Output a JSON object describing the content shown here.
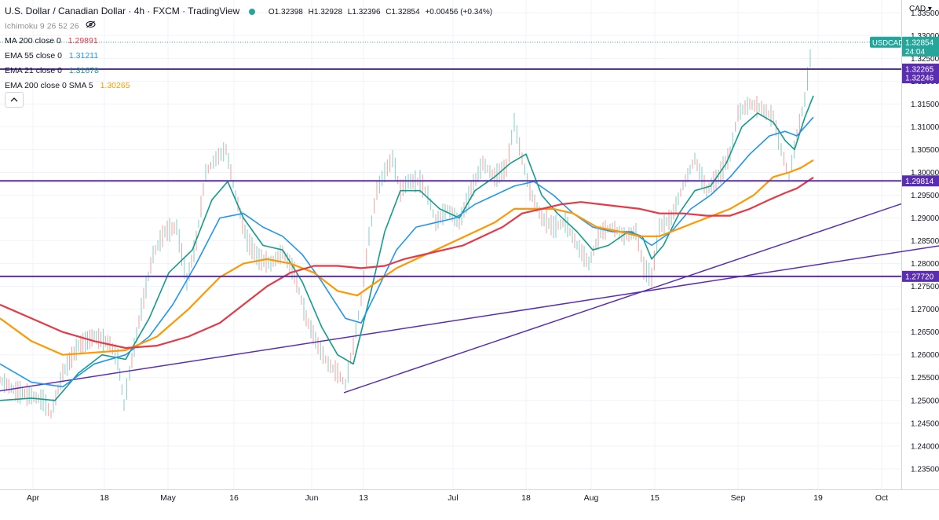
{
  "legend": {
    "title": "U.S. Dollar / Canadian Dollar · 4h · FXCM · TradingView",
    "open": "O1.32398",
    "high": "H1.32928",
    "low": "L1.32396",
    "close": "C1.32854",
    "change": "+0.00456 (+0.34%)",
    "ichimoku": "Ichimoku 9 26 52 26",
    "ma200": {
      "label": "MA 200 close 0",
      "value": "1.29891",
      "color": "#e53946"
    },
    "ema55": {
      "label": "EMA 55 close 0",
      "value": "1.31211",
      "color": "#2196f3"
    },
    "ema21": {
      "label": "EMA 21 close 0",
      "value": "1.31678",
      "color": "#129c8c"
    },
    "ema200": {
      "label": "EMA 200 close 0 SMA 5",
      "value": "1.30265",
      "color": "#ff9800"
    }
  },
  "price_axis": {
    "currency": "CAD",
    "symbol_tag": "USDCAD",
    "countdown": "24:04"
  },
  "chart_data": {
    "type": "line",
    "symbol": "USDCAD",
    "timeframe": "4h",
    "ylim": [
      1.2305,
      1.3378
    ],
    "x_tick_labels": [
      "Apr",
      "18",
      "May",
      "16",
      "Jun",
      "13",
      "Jul",
      "18",
      "Aug",
      "15",
      "Sep",
      "19",
      "Oct"
    ],
    "y_tick_labels": [
      "1.23500",
      "1.24000",
      "1.24500",
      "1.25000",
      "1.25500",
      "1.26000",
      "1.26500",
      "1.27000",
      "1.27500",
      "1.28000",
      "1.28500",
      "1.29000",
      "1.29500",
      "1.30000",
      "1.30500",
      "1.31000",
      "1.31500",
      "1.32000",
      "1.32500",
      "1.33000",
      "1.33500"
    ],
    "last_price": "1.32854",
    "horizontal_levels": [
      {
        "value": "1.32265",
        "color": "#5b2db3"
      },
      {
        "value": "1.29814",
        "color": "#5b2db3"
      },
      {
        "value": "1.27720",
        "color": "#5b2db3"
      }
    ],
    "extra_label": {
      "value": "1.32246",
      "color": "#5b2db3"
    },
    "trendlines": [
      {
        "from": [
          0.0,
          1.2521
        ],
        "to": [
          1196.0,
          1.2839
        ],
        "color": "#5b2db3"
      },
      {
        "from": [
          438.0,
          1.2517
        ],
        "to": [
          1148.0,
          1.2931
        ],
        "color": "#5b2db3"
      }
    ],
    "price_path": [
      [
        0,
        1.2545
      ],
      [
        20,
        1.252
      ],
      [
        40,
        1.251
      ],
      [
        55,
        1.25
      ],
      [
        65,
        1.247
      ],
      [
        80,
        1.256
      ],
      [
        100,
        1.262
      ],
      [
        120,
        1.264
      ],
      [
        140,
        1.2625
      ],
      [
        150,
        1.259
      ],
      [
        158,
        1.249
      ],
      [
        165,
        1.256
      ],
      [
        180,
        1.27
      ],
      [
        195,
        1.282
      ],
      [
        210,
        1.287
      ],
      [
        225,
        1.288
      ],
      [
        238,
        1.276
      ],
      [
        250,
        1.285
      ],
      [
        262,
        1.3
      ],
      [
        275,
        1.303
      ],
      [
        288,
        1.305
      ],
      [
        300,
        1.295
      ],
      [
        315,
        1.285
      ],
      [
        330,
        1.281
      ],
      [
        345,
        1.28
      ],
      [
        360,
        1.2825
      ],
      [
        375,
        1.278
      ],
      [
        390,
        1.268
      ],
      [
        405,
        1.262
      ],
      [
        418,
        1.258
      ],
      [
        430,
        1.256
      ],
      [
        440,
        1.2535
      ],
      [
        450,
        1.262
      ],
      [
        460,
        1.272
      ],
      [
        470,
        1.286
      ],
      [
        480,
        1.296
      ],
      [
        490,
        1.3
      ],
      [
        500,
        1.303
      ],
      [
        510,
        1.296
      ],
      [
        520,
        1.298
      ],
      [
        535,
        1.298
      ],
      [
        545,
        1.295
      ],
      [
        555,
        1.289
      ],
      [
        570,
        1.292
      ],
      [
        585,
        1.289
      ],
      [
        600,
        1.296
      ],
      [
        615,
        1.302
      ],
      [
        630,
        1.299
      ],
      [
        645,
        1.301
      ],
      [
        655,
        1.311
      ],
      [
        665,
        1.303
      ],
      [
        675,
        1.296
      ],
      [
        690,
        1.29
      ],
      [
        705,
        1.288
      ],
      [
        720,
        1.289
      ],
      [
        735,
        1.284
      ],
      [
        750,
        1.28
      ],
      [
        765,
        1.287
      ],
      [
        780,
        1.288
      ],
      [
        795,
        1.286
      ],
      [
        810,
        1.287
      ],
      [
        820,
        1.279
      ],
      [
        830,
        1.277
      ],
      [
        840,
        1.288
      ],
      [
        855,
        1.29
      ],
      [
        870,
        1.297
      ],
      [
        885,
        1.303
      ],
      [
        900,
        1.296
      ],
      [
        915,
        1.299
      ],
      [
        930,
        1.304
      ],
      [
        940,
        1.313
      ],
      [
        955,
        1.315
      ],
      [
        970,
        1.314
      ],
      [
        985,
        1.312
      ],
      [
        995,
        1.305
      ],
      [
        1005,
        1.299
      ],
      [
        1015,
        1.308
      ],
      [
        1025,
        1.316
      ],
      [
        1032,
        1.325
      ],
      [
        1036,
        1.3285
      ]
    ],
    "series": [
      {
        "name": "EMA 21 close 0",
        "color": "#129c8c",
        "points": [
          [
            0,
            1.25
          ],
          [
            40,
            1.2505
          ],
          [
            70,
            1.25
          ],
          [
            100,
            1.256
          ],
          [
            130,
            1.26
          ],
          [
            160,
            1.259
          ],
          [
            190,
            1.268
          ],
          [
            215,
            1.278
          ],
          [
            245,
            1.283
          ],
          [
            270,
            1.294
          ],
          [
            290,
            1.298
          ],
          [
            310,
            1.29
          ],
          [
            335,
            1.284
          ],
          [
            360,
            1.283
          ],
          [
            385,
            1.276
          ],
          [
            410,
            1.266
          ],
          [
            430,
            1.26
          ],
          [
            450,
            1.258
          ],
          [
            470,
            1.272
          ],
          [
            490,
            1.287
          ],
          [
            510,
            1.296
          ],
          [
            535,
            1.296
          ],
          [
            560,
            1.292
          ],
          [
            585,
            1.29
          ],
          [
            605,
            1.296
          ],
          [
            630,
            1.299
          ],
          [
            650,
            1.302
          ],
          [
            670,
            1.304
          ],
          [
            690,
            1.295
          ],
          [
            710,
            1.291
          ],
          [
            735,
            1.287
          ],
          [
            755,
            1.283
          ],
          [
            775,
            1.284
          ],
          [
            800,
            1.287
          ],
          [
            818,
            1.286
          ],
          [
            830,
            1.281
          ],
          [
            845,
            1.284
          ],
          [
            865,
            1.291
          ],
          [
            885,
            1.296
          ],
          [
            905,
            1.297
          ],
          [
            925,
            1.302
          ],
          [
            945,
            1.31
          ],
          [
            965,
            1.313
          ],
          [
            985,
            1.311
          ],
          [
            1000,
            1.307
          ],
          [
            1012,
            1.305
          ],
          [
            1025,
            1.312
          ],
          [
            1036,
            1.3168
          ]
        ]
      },
      {
        "name": "EMA 55 close 0",
        "color": "#2196f3",
        "points": [
          [
            0,
            1.258
          ],
          [
            40,
            1.254
          ],
          [
            80,
            1.253
          ],
          [
            120,
            1.258
          ],
          [
            160,
            1.26
          ],
          [
            190,
            1.264
          ],
          [
            220,
            1.271
          ],
          [
            250,
            1.28
          ],
          [
            280,
            1.29
          ],
          [
            310,
            1.291
          ],
          [
            335,
            1.288
          ],
          [
            360,
            1.286
          ],
          [
            385,
            1.282
          ],
          [
            410,
            1.276
          ],
          [
            440,
            1.268
          ],
          [
            460,
            1.267
          ],
          [
            480,
            1.274
          ],
          [
            505,
            1.283
          ],
          [
            530,
            1.288
          ],
          [
            555,
            1.289
          ],
          [
            580,
            1.29
          ],
          [
            605,
            1.293
          ],
          [
            630,
            1.295
          ],
          [
            655,
            1.297
          ],
          [
            680,
            1.298
          ],
          [
            705,
            1.295
          ],
          [
            730,
            1.291
          ],
          [
            755,
            1.288
          ],
          [
            780,
            1.287
          ],
          [
            805,
            1.287
          ],
          [
            830,
            1.284
          ],
          [
            855,
            1.287
          ],
          [
            880,
            1.292
          ],
          [
            905,
            1.295
          ],
          [
            930,
            1.299
          ],
          [
            955,
            1.304
          ],
          [
            980,
            1.308
          ],
          [
            1000,
            1.309
          ],
          [
            1015,
            1.308
          ],
          [
            1036,
            1.3121
          ]
        ]
      },
      {
        "name": "EMA 200 close 0 SMA 5",
        "color": "#ff9800",
        "points": [
          [
            0,
            1.268
          ],
          [
            40,
            1.263
          ],
          [
            80,
            1.26
          ],
          [
            120,
            1.2605
          ],
          [
            160,
            1.261
          ],
          [
            200,
            1.264
          ],
          [
            240,
            1.27
          ],
          [
            280,
            1.277
          ],
          [
            310,
            1.28
          ],
          [
            340,
            1.281
          ],
          [
            370,
            1.28
          ],
          [
            400,
            1.278
          ],
          [
            430,
            1.274
          ],
          [
            455,
            1.273
          ],
          [
            480,
            1.276
          ],
          [
            505,
            1.279
          ],
          [
            530,
            1.281
          ],
          [
            555,
            1.283
          ],
          [
            580,
            1.285
          ],
          [
            605,
            1.287
          ],
          [
            630,
            1.289
          ],
          [
            655,
            1.292
          ],
          [
            680,
            1.292
          ],
          [
            705,
            1.292
          ],
          [
            730,
            1.291
          ],
          [
            760,
            1.288
          ],
          [
            790,
            1.287
          ],
          [
            815,
            1.286
          ],
          [
            840,
            1.286
          ],
          [
            870,
            1.288
          ],
          [
            900,
            1.29
          ],
          [
            930,
            1.292
          ],
          [
            960,
            1.295
          ],
          [
            985,
            1.299
          ],
          [
            1005,
            1.3
          ],
          [
            1020,
            1.301
          ],
          [
            1036,
            1.3027
          ]
        ]
      },
      {
        "name": "MA 200 close 0",
        "color": "#e53946",
        "points": [
          [
            0,
            1.271
          ],
          [
            40,
            1.268
          ],
          [
            80,
            1.265
          ],
          [
            120,
            1.263
          ],
          [
            160,
            1.2615
          ],
          [
            200,
            1.262
          ],
          [
            240,
            1.264
          ],
          [
            280,
            1.267
          ],
          [
            310,
            1.271
          ],
          [
            340,
            1.275
          ],
          [
            370,
            1.278
          ],
          [
            400,
            1.2795
          ],
          [
            430,
            1.2795
          ],
          [
            460,
            1.279
          ],
          [
            490,
            1.2795
          ],
          [
            515,
            1.281
          ],
          [
            540,
            1.282
          ],
          [
            565,
            1.283
          ],
          [
            590,
            1.284
          ],
          [
            615,
            1.286
          ],
          [
            640,
            1.288
          ],
          [
            665,
            1.291
          ],
          [
            690,
            1.292
          ],
          [
            715,
            1.293
          ],
          [
            740,
            1.2935
          ],
          [
            765,
            1.293
          ],
          [
            790,
            1.2925
          ],
          [
            815,
            1.292
          ],
          [
            840,
            1.291
          ],
          [
            870,
            1.291
          ],
          [
            900,
            1.2905
          ],
          [
            930,
            1.2905
          ],
          [
            955,
            1.292
          ],
          [
            980,
            1.294
          ],
          [
            1000,
            1.2955
          ],
          [
            1015,
            1.2965
          ],
          [
            1036,
            1.2989
          ]
        ]
      }
    ]
  }
}
